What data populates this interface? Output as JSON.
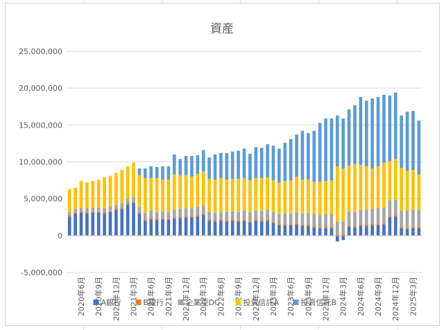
{
  "chart_data": {
    "type": "bar",
    "stacked": true,
    "title": "資産",
    "xlabel": "",
    "ylabel": "",
    "ylim": [
      -5000000,
      25000000
    ],
    "yticks": [
      25000000,
      20000000,
      15000000,
      10000000,
      5000000,
      0,
      -5000000
    ],
    "ytick_labels": [
      "25,000,000",
      "20,000,000",
      "15,000,000",
      "10,000,000",
      "5,000,000",
      "0",
      "-5,000,000"
    ],
    "grid": true,
    "legend_position": "bottom",
    "categories": [
      "2020年4月",
      "2020年5月",
      "2020年6月",
      "2020年7月",
      "2020年8月",
      "2020年9月",
      "2020年10月",
      "2020年11月",
      "2020年12月",
      "2021年1月",
      "2021年2月",
      "2021年3月",
      "2021年4月",
      "2021年5月",
      "2021年6月",
      "2021年7月",
      "2021年8月",
      "2021年9月",
      "2021年10月",
      "2021年11月",
      "2021年12月",
      "2022年1月",
      "2022年2月",
      "2022年3月",
      "2022年4月",
      "2022年5月",
      "2022年6月",
      "2022年7月",
      "2022年8月",
      "2022年9月",
      "2022年10月",
      "2022年11月",
      "2022年12月",
      "2023年1月",
      "2023年2月",
      "2023年3月",
      "2023年4月",
      "2023年5月",
      "2023年6月",
      "2023年7月",
      "2023年8月",
      "2023年9月",
      "2023年10月",
      "2023年11月",
      "2023年12月",
      "2024年1月",
      "2024年2月",
      "2024年3月",
      "2024年4月",
      "2024年5月",
      "2024年6月",
      "2024年7月",
      "2024年8月",
      "2024年9月",
      "2024年10月",
      "2024年11月",
      "2024年12月",
      "2025年1月",
      "2025年2月",
      "2025年3月",
      "2025年4月"
    ],
    "shown_tick_labels": [
      "2020年6月",
      "2020年9月",
      "2020年12月",
      "2021年3月",
      "2021年6月",
      "2021年9月",
      "2021年12月",
      "2022年3月",
      "2022年6月",
      "2022年9月",
      "2022年12月",
      "2023年3月",
      "2023年6月",
      "2023年9月",
      "2023年12月",
      "2024年3月",
      "2024年6月",
      "2024年9月",
      "2024年12月",
      "2025年3月"
    ],
    "series": [
      {
        "name": "A銀行",
        "color": "#4472C4",
        "values": [
          2600000,
          3000000,
          3100000,
          3000000,
          3100000,
          3100000,
          3000000,
          3200000,
          3500000,
          3600000,
          4200000,
          4400000,
          3000000,
          2000000,
          2200000,
          2100000,
          2200000,
          2100000,
          2300000,
          2400000,
          2500000,
          2500000,
          2600000,
          2800000,
          2000000,
          1900000,
          2000000,
          1900000,
          2000000,
          1900000,
          2000000,
          1800000,
          2000000,
          1900000,
          2000000,
          1700000,
          1400000,
          1400000,
          1400000,
          1500000,
          1300000,
          1300000,
          1100000,
          1000000,
          1000000,
          1000000,
          -800000,
          -600000,
          1200000,
          1100000,
          1300000,
          1300000,
          1400000,
          1400000,
          1500000,
          2500000,
          2600000,
          1000000,
          900000,
          1000000,
          1000000
        ]
      },
      {
        "name": "B銀行",
        "color": "#ED7D31",
        "values": [
          200000,
          200000,
          200000,
          200000,
          200000,
          200000,
          200000,
          200000,
          200000,
          200000,
          200000,
          200000,
          200000,
          200000,
          200000,
          200000,
          200000,
          200000,
          200000,
          200000,
          200000,
          200000,
          200000,
          200000,
          200000,
          200000,
          200000,
          200000,
          200000,
          200000,
          200000,
          200000,
          200000,
          200000,
          200000,
          200000,
          200000,
          200000,
          200000,
          200000,
          200000,
          200000,
          200000,
          200000,
          200000,
          200000,
          200000,
          200000,
          200000,
          200000,
          200000,
          200000,
          200000,
          200000,
          200000,
          200000,
          200000,
          200000,
          200000,
          200000,
          200000
        ]
      },
      {
        "name": "企業型DC",
        "color": "#A5A5A5",
        "values": [
          400000,
          400000,
          400000,
          500000,
          500000,
          500000,
          500000,
          600000,
          500000,
          600000,
          600000,
          600000,
          700000,
          800000,
          1000000,
          900000,
          900000,
          900000,
          1000000,
          1000000,
          1000000,
          1000000,
          1100000,
          1100000,
          1000000,
          1000000,
          1000000,
          1100000,
          1100000,
          1100000,
          1200000,
          1200000,
          1200000,
          1200000,
          1300000,
          1300000,
          1300000,
          1400000,
          1400000,
          1500000,
          1500000,
          1600000,
          1600000,
          1600000,
          1700000,
          1700000,
          1700000,
          1700000,
          1800000,
          1900000,
          2000000,
          2000000,
          2000000,
          2100000,
          2100000,
          2100000,
          2100000,
          2200000,
          2300000,
          2300000,
          2300000
        ]
      },
      {
        "name": "投資信託A",
        "color": "#FFC000",
        "values": [
          3100000,
          2900000,
          3700000,
          3500000,
          3600000,
          3800000,
          4200000,
          4100000,
          4300000,
          4500000,
          4400000,
          4700000,
          4300000,
          4800000,
          4400000,
          4600000,
          4300000,
          4400000,
          4800000,
          4600000,
          4500000,
          4300000,
          4500000,
          4600000,
          4500000,
          4500000,
          4600000,
          4400000,
          4400000,
          4500000,
          4400000,
          4300000,
          4400000,
          4500000,
          4400000,
          4300000,
          4300000,
          4400000,
          4500000,
          4800000,
          4600000,
          4500000,
          4400000,
          4500000,
          4500000,
          4600000,
          7500000,
          7200000,
          6300000,
          6500000,
          6100000,
          5900000,
          5500000,
          5700000,
          6100000,
          5300000,
          5500000,
          5800000,
          5400000,
          5400000,
          4800000
        ]
      },
      {
        "name": "投資信託B",
        "color": "#5B9BD5",
        "values": [
          0,
          0,
          0,
          0,
          0,
          0,
          0,
          0,
          0,
          0,
          0,
          0,
          900000,
          1300000,
          1600000,
          1500000,
          1800000,
          1800000,
          2700000,
          2200000,
          2600000,
          2800000,
          2500000,
          2900000,
          2900000,
          3400000,
          3400000,
          3600000,
          3700000,
          3800000,
          4000000,
          3600000,
          4200000,
          4100000,
          4500000,
          4700000,
          4600000,
          5200000,
          5600000,
          5700000,
          6600000,
          6300000,
          6900000,
          8000000,
          8500000,
          8400000,
          6900000,
          6800000,
          7600000,
          8000000,
          9200000,
          8900000,
          9500000,
          9400000,
          9200000,
          8900000,
          9000000,
          7100000,
          8000000,
          8000000,
          7300000
        ]
      }
    ]
  }
}
